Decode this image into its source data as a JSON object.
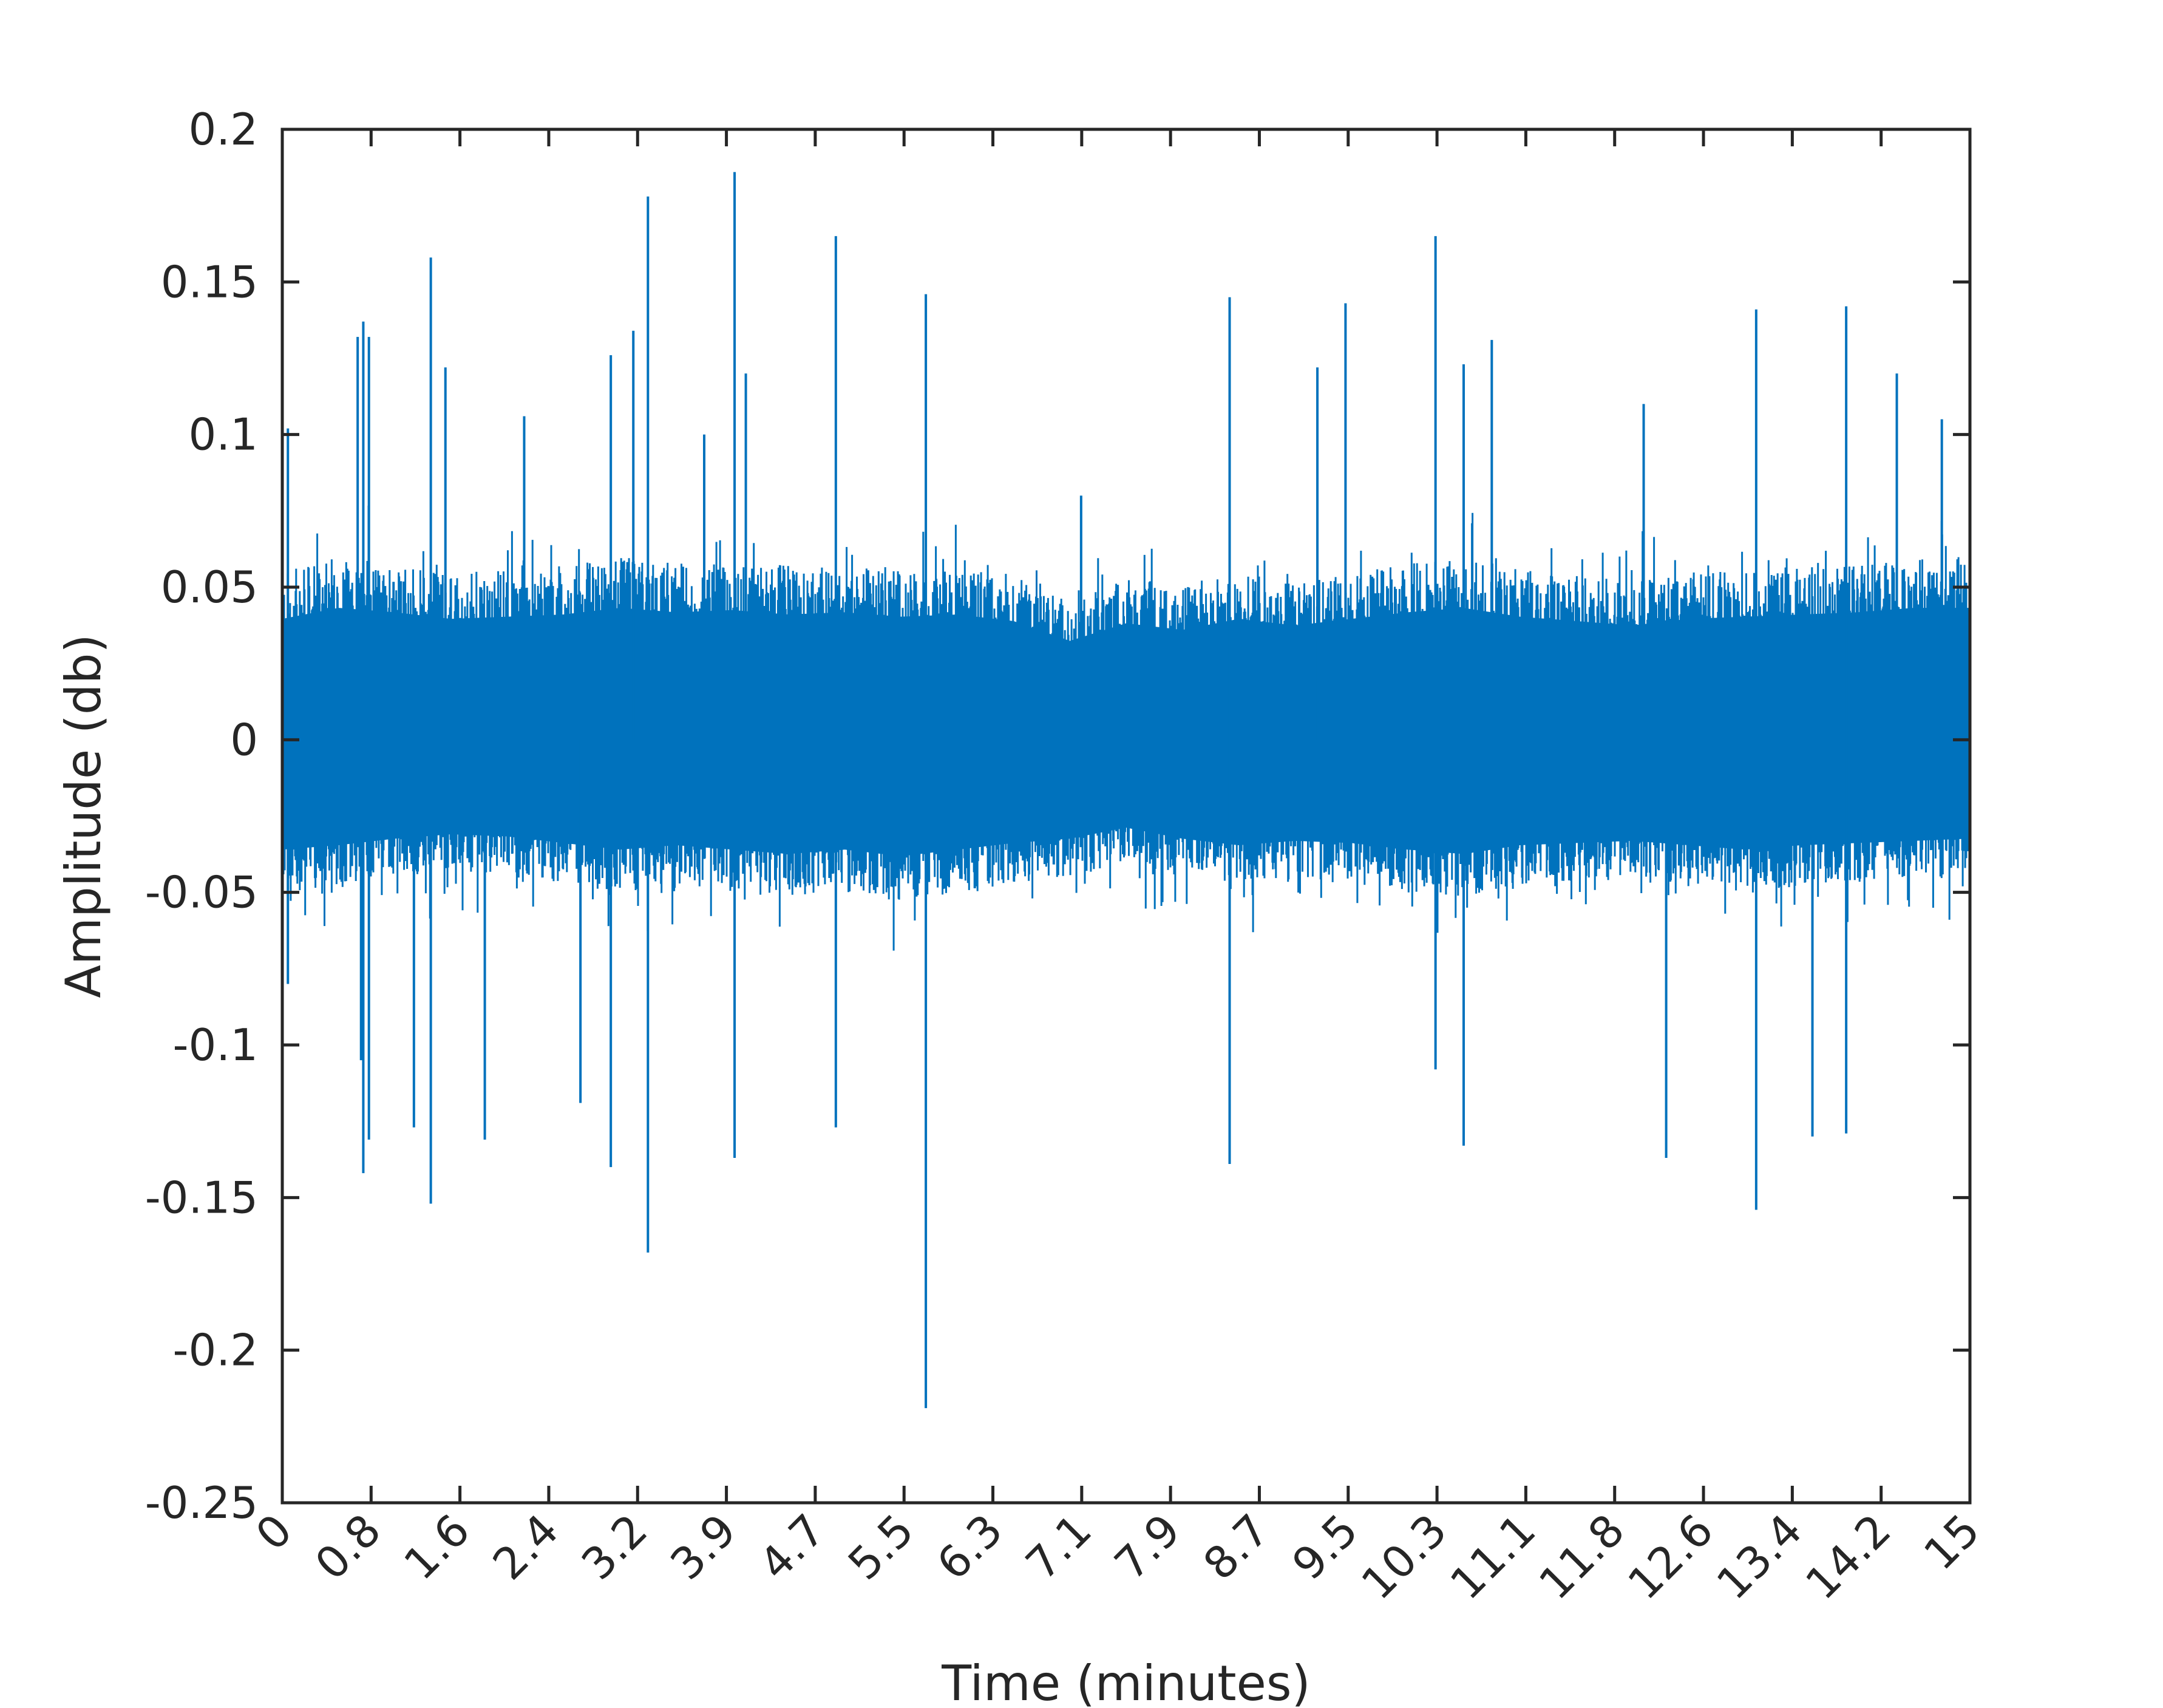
{
  "chart_data": {
    "type": "line",
    "title": "",
    "xlabel": "Time (minutes)",
    "ylabel": "Amplitude (db)",
    "xlim": [
      0,
      15
    ],
    "ylim": [
      -0.25,
      0.2
    ],
    "grid": false,
    "legend": "none",
    "line_color": "#0072BD",
    "xticks": [
      0,
      0.78947,
      1.57895,
      2.36842,
      3.15789,
      3.94737,
      4.73684,
      5.52632,
      6.31579,
      7.10526,
      7.89474,
      8.68421,
      9.47368,
      10.26316,
      11.05263,
      11.84211,
      12.63158,
      13.42105,
      14.21053,
      15
    ],
    "xtick_labels": [
      "0",
      "0.8",
      "1.6",
      "2.4",
      "3.2",
      "3.9",
      "4.7",
      "5.5",
      "6.3",
      "7.1",
      "7.9",
      "8.7",
      "9.5",
      "10.3",
      "11.1",
      "11.8",
      "12.6",
      "13.4",
      "14.2",
      "15"
    ],
    "yticks": [
      -0.25,
      -0.2,
      -0.15,
      -0.1,
      -0.05,
      0,
      0.05,
      0.1,
      0.15,
      0.2
    ],
    "ytick_labels": [
      "-0.25",
      "-0.2",
      "-0.15",
      "-0.1",
      "-0.05",
      "0",
      "0.05",
      "0.1",
      "0.15",
      "0.2"
    ],
    "envelope": {
      "x": [
        0,
        0.5,
        1.0,
        1.5,
        2.0,
        2.5,
        3.0,
        3.5,
        4.0,
        4.5,
        5.0,
        5.5,
        6.0,
        6.5,
        7.0,
        7.5,
        8.0,
        8.5,
        9.0,
        9.5,
        10.0,
        10.5,
        11.0,
        11.5,
        12.0,
        12.5,
        13.0,
        13.5,
        14.0,
        14.5,
        15
      ],
      "upper": [
        0.055,
        0.06,
        0.058,
        0.055,
        0.056,
        0.057,
        0.06,
        0.058,
        0.059,
        0.057,
        0.058,
        0.056,
        0.057,
        0.054,
        0.045,
        0.053,
        0.05,
        0.055,
        0.052,
        0.055,
        0.058,
        0.06,
        0.056,
        0.054,
        0.052,
        0.055,
        0.056,
        0.057,
        0.058,
        0.06,
        0.06
      ],
      "lower": [
        -0.05,
        -0.048,
        -0.045,
        -0.043,
        -0.044,
        -0.047,
        -0.05,
        -0.048,
        -0.05,
        -0.052,
        -0.05,
        -0.053,
        -0.05,
        -0.047,
        -0.045,
        -0.04,
        -0.045,
        -0.048,
        -0.046,
        -0.047,
        -0.05,
        -0.052,
        -0.048,
        -0.047,
        -0.046,
        -0.048,
        -0.05,
        -0.048,
        -0.047,
        -0.046,
        -0.045
      ]
    },
    "peaks_positive": [
      {
        "x": 0.05,
        "y": 0.102
      },
      {
        "x": 0.67,
        "y": 0.132
      },
      {
        "x": 0.72,
        "y": 0.137
      },
      {
        "x": 0.77,
        "y": 0.132
      },
      {
        "x": 1.32,
        "y": 0.158
      },
      {
        "x": 1.45,
        "y": 0.122
      },
      {
        "x": 2.15,
        "y": 0.106
      },
      {
        "x": 2.92,
        "y": 0.126
      },
      {
        "x": 3.12,
        "y": 0.134
      },
      {
        "x": 3.25,
        "y": 0.178
      },
      {
        "x": 3.75,
        "y": 0.1
      },
      {
        "x": 4.02,
        "y": 0.186
      },
      {
        "x": 4.12,
        "y": 0.12
      },
      {
        "x": 4.92,
        "y": 0.165
      },
      {
        "x": 5.72,
        "y": 0.146
      },
      {
        "x": 7.1,
        "y": 0.08
      },
      {
        "x": 8.42,
        "y": 0.145
      },
      {
        "x": 9.2,
        "y": 0.122
      },
      {
        "x": 9.45,
        "y": 0.143
      },
      {
        "x": 10.25,
        "y": 0.165
      },
      {
        "x": 10.5,
        "y": 0.123
      },
      {
        "x": 10.75,
        "y": 0.131
      },
      {
        "x": 12.1,
        "y": 0.11
      },
      {
        "x": 13.1,
        "y": 0.141
      },
      {
        "x": 13.9,
        "y": 0.142
      },
      {
        "x": 14.35,
        "y": 0.12
      },
      {
        "x": 14.75,
        "y": 0.105
      }
    ],
    "peaks_negative": [
      {
        "x": 0.05,
        "y": -0.08
      },
      {
        "x": 0.7,
        "y": -0.105
      },
      {
        "x": 0.72,
        "y": -0.142
      },
      {
        "x": 0.77,
        "y": -0.131
      },
      {
        "x": 1.17,
        "y": -0.127
      },
      {
        "x": 1.32,
        "y": -0.152
      },
      {
        "x": 1.8,
        "y": -0.131
      },
      {
        "x": 2.65,
        "y": -0.119
      },
      {
        "x": 2.92,
        "y": -0.14
      },
      {
        "x": 3.25,
        "y": -0.168
      },
      {
        "x": 4.02,
        "y": -0.137
      },
      {
        "x": 4.92,
        "y": -0.127
      },
      {
        "x": 5.72,
        "y": -0.219
      },
      {
        "x": 8.42,
        "y": -0.139
      },
      {
        "x": 10.25,
        "y": -0.108
      },
      {
        "x": 10.5,
        "y": -0.133
      },
      {
        "x": 12.3,
        "y": -0.137
      },
      {
        "x": 13.1,
        "y": -0.154
      },
      {
        "x": 13.6,
        "y": -0.13
      },
      {
        "x": 13.9,
        "y": -0.129
      }
    ]
  }
}
